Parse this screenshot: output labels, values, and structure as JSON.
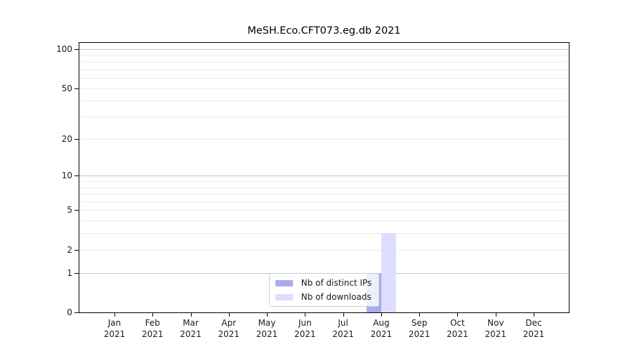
{
  "figure": {
    "background": "#ffffff"
  },
  "chart_data": {
    "type": "bar",
    "title": "MeSH.Eco.CFT073.eg.db 2021",
    "categories": [
      "Jan",
      "Feb",
      "Mar",
      "Apr",
      "May",
      "Jun",
      "Jul",
      "Aug",
      "Sep",
      "Oct",
      "Nov",
      "Dec"
    ],
    "year_label": "2021",
    "series": [
      {
        "name": "Nb of distinct IPs",
        "color": "#aaaaee",
        "values": [
          0,
          0,
          0,
          0,
          0,
          0,
          0,
          1,
          0,
          0,
          0,
          0
        ]
      },
      {
        "name": "Nb of downloads",
        "color": "#ddddff",
        "values": [
          0,
          0,
          0,
          0,
          0,
          0,
          0,
          3,
          0,
          0,
          0,
          0
        ]
      }
    ],
    "xlabel": "",
    "ylabel": "",
    "y_scale": "log10(1+y)",
    "ylim": [
      0,
      112
    ],
    "y_ticks": [
      0,
      1,
      2,
      5,
      10,
      20,
      50,
      100
    ],
    "y_major_gridlines": [
      1,
      10,
      100
    ],
    "y_minor_gridlines": [
      2,
      3,
      4,
      5,
      6,
      7,
      8,
      9,
      20,
      30,
      40,
      50,
      60,
      70,
      80,
      90
    ],
    "grid": true,
    "legend_position": "lower center",
    "colors": {
      "major_grid": "#c6c6c6",
      "minor_grid": "#ebebeb",
      "axis": "#000000",
      "tick_text": "#1a1a1a",
      "legend_border": "#cccccc"
    }
  }
}
